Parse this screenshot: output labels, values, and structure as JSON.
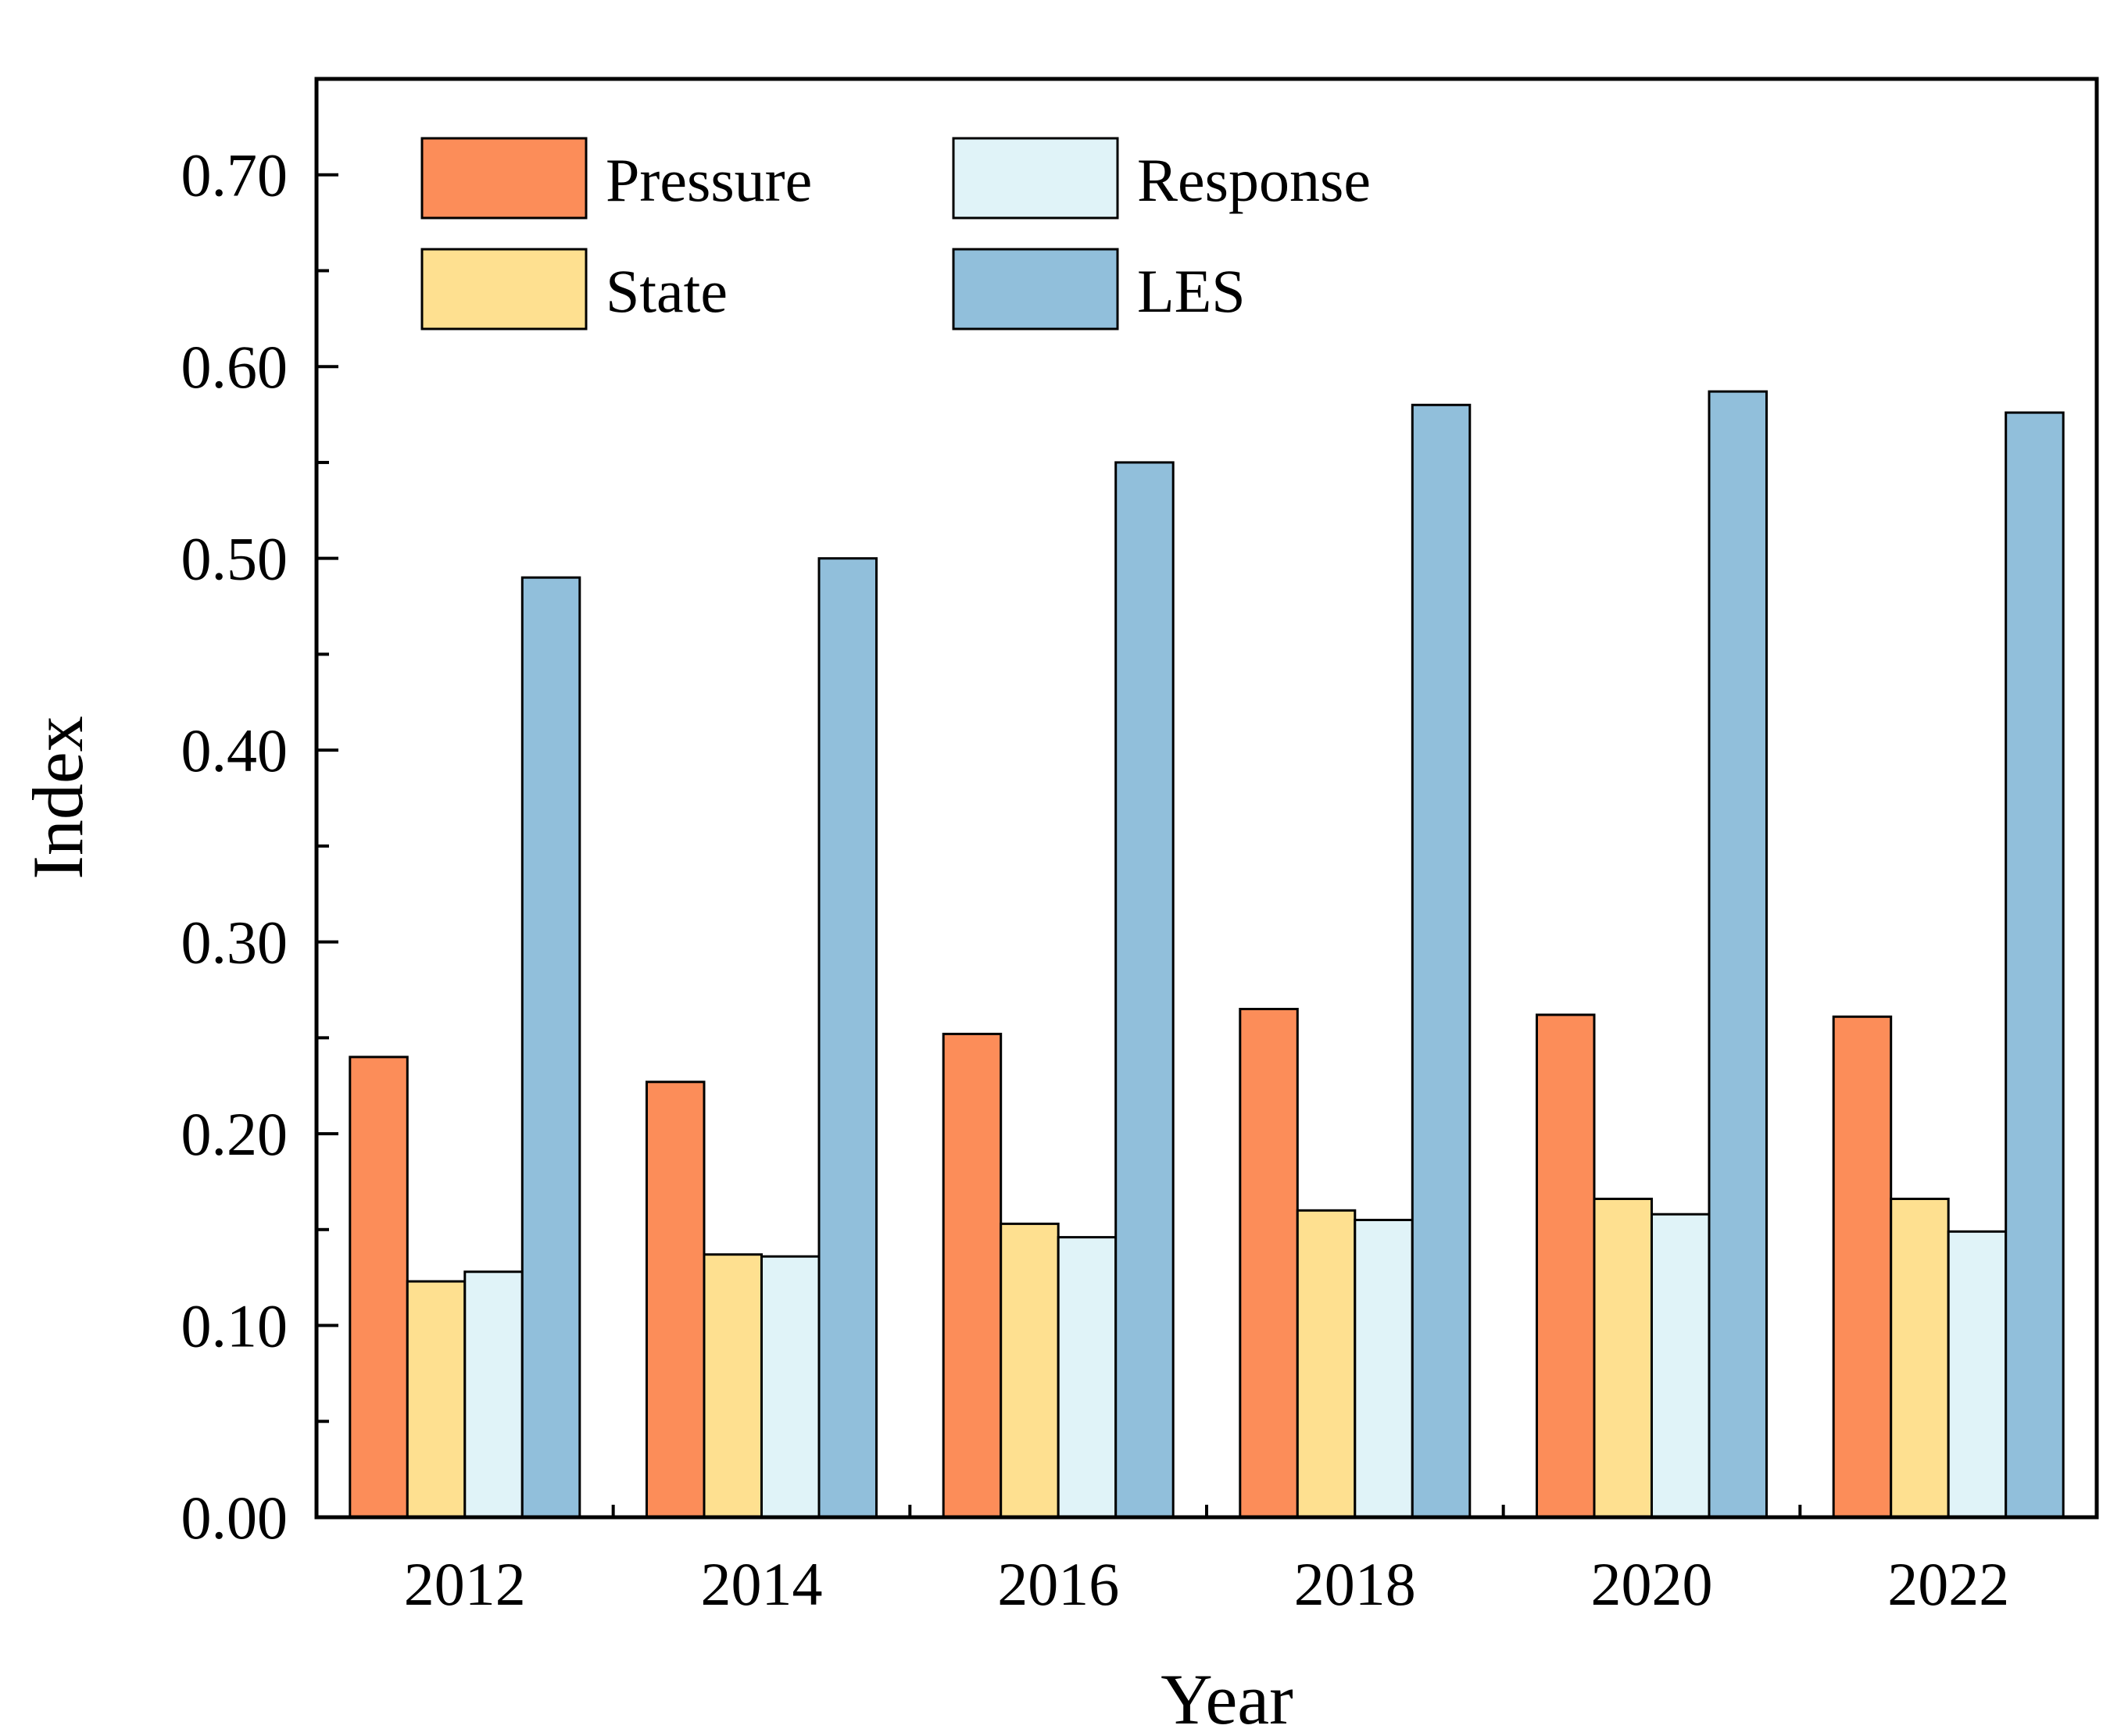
{
  "chart_data": {
    "type": "bar",
    "title": "",
    "xlabel": "Year",
    "ylabel": "Index",
    "categories": [
      "2012",
      "2014",
      "2016",
      "2018",
      "2020",
      "2022"
    ],
    "ylim": [
      0,
      0.75
    ],
    "yticks": [
      "0.00",
      "0.10",
      "0.20",
      "0.30",
      "0.40",
      "0.50",
      "0.60",
      "0.70"
    ],
    "ytick_values": [
      0,
      0.1,
      0.2,
      0.3,
      0.4,
      0.5,
      0.6,
      0.7
    ],
    "grid": false,
    "legend_position": "top-left",
    "series": [
      {
        "name": "Pressure",
        "color": "#fc8d59",
        "values": [
          0.24,
          0.227,
          0.252,
          0.265,
          0.262,
          0.261
        ]
      },
      {
        "name": "State",
        "color": "#fee090",
        "values": [
          0.123,
          0.137,
          0.153,
          0.16,
          0.166,
          0.166
        ]
      },
      {
        "name": "Response",
        "color": "#e0f3f8",
        "values": [
          0.128,
          0.136,
          0.146,
          0.155,
          0.158,
          0.149
        ]
      },
      {
        "name": "LES",
        "color": "#91bfdb",
        "values": [
          0.49,
          0.5,
          0.55,
          0.58,
          0.587,
          0.576
        ]
      }
    ],
    "legend_order": [
      "Pressure",
      "Response",
      "State",
      "LES"
    ]
  }
}
